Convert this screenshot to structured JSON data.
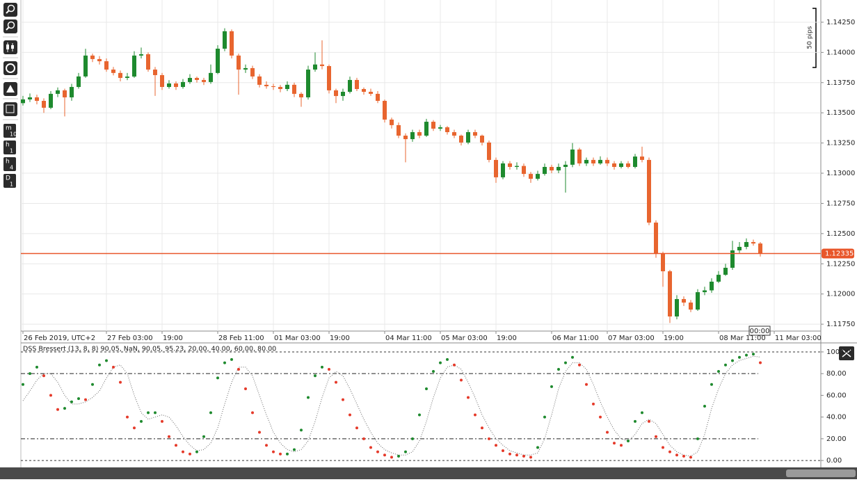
{
  "toolbar": {
    "buttons": [
      {
        "label": "m",
        "sub": "10"
      },
      {
        "label": "h",
        "sub": "1"
      },
      {
        "label": "h",
        "sub": "4"
      },
      {
        "label": "D",
        "sub": "1"
      }
    ]
  },
  "cursor_label": "00:00",
  "ruler_label": "50 pips",
  "chart_data": [
    {
      "type": "candlestick",
      "categories": [
        "26 Feb 2019, UTC+2",
        null,
        null,
        null,
        null,
        null,
        null,
        null,
        null,
        null,
        null,
        null,
        "27 Feb 03:00",
        null,
        null,
        null,
        null,
        null,
        null,
        null,
        "19:00",
        null,
        null,
        null,
        null,
        null,
        null,
        null,
        "28 Feb 11:00",
        null,
        null,
        null,
        null,
        null,
        null,
        null,
        "01 Mar 03:00",
        null,
        null,
        null,
        null,
        null,
        null,
        null,
        "19:00",
        null,
        null,
        null,
        null,
        null,
        null,
        null,
        "04 Mar 11:00",
        null,
        null,
        null,
        null,
        null,
        null,
        null,
        "05 Mar 03:00",
        null,
        null,
        null,
        null,
        null,
        null,
        null,
        "19:00",
        null,
        null,
        null,
        null,
        null,
        null,
        null,
        "06 Mar 11:00",
        null,
        null,
        null,
        null,
        null,
        null,
        null,
        "07 Mar 03:00",
        null,
        null,
        null,
        null,
        null,
        null,
        null,
        "19:00",
        null,
        null,
        null,
        null,
        null,
        null,
        null,
        "08 Mar 11:00",
        null,
        null,
        null,
        null,
        null,
        null,
        null,
        "11 Mar 03:00"
      ],
      "ohlc": [
        [
          1.1358,
          1.1364,
          1.1356,
          1.13611
        ],
        [
          1.13611,
          1.1366,
          1.1359,
          1.13628
        ],
        [
          1.13628,
          1.1365,
          1.1357,
          1.13599
        ],
        [
          1.13599,
          1.1362,
          1.135,
          1.13542
        ],
        [
          1.13542,
          1.1368,
          1.1353,
          1.13657
        ],
        [
          1.13657,
          1.1371,
          1.1363,
          1.13686
        ],
        [
          1.13686,
          1.137,
          1.1347,
          1.13628
        ],
        [
          1.13628,
          1.1374,
          1.136,
          1.13714
        ],
        [
          1.13714,
          1.1383,
          1.137,
          1.13801
        ],
        [
          1.13801,
          1.1403,
          1.1379,
          1.13974
        ],
        [
          1.13974,
          1.1399,
          1.1392,
          1.13945
        ],
        [
          1.13945,
          1.1397,
          1.139,
          1.13927
        ],
        [
          1.13927,
          1.1395,
          1.1384,
          1.13858
        ],
        [
          1.13858,
          1.1388,
          1.1381,
          1.1383
        ],
        [
          1.1383,
          1.1385,
          1.1376,
          1.13789
        ],
        [
          1.13789,
          1.1383,
          1.1377,
          1.138
        ],
        [
          1.138,
          1.1401,
          1.1379,
          1.13974
        ],
        [
          1.13974,
          1.1404,
          1.1395,
          1.13985
        ],
        [
          1.13985,
          1.14,
          1.1384,
          1.13858
        ],
        [
          1.13858,
          1.1388,
          1.1364,
          1.13812
        ],
        [
          1.13812,
          1.1383,
          1.1369,
          1.13714
        ],
        [
          1.13714,
          1.1377,
          1.137,
          1.13743
        ],
        [
          1.13743,
          1.1376,
          1.1369,
          1.13714
        ],
        [
          1.13714,
          1.1378,
          1.137,
          1.13755
        ],
        [
          1.13755,
          1.1382,
          1.1374,
          1.13789
        ],
        [
          1.13789,
          1.138,
          1.1375,
          1.13772
        ],
        [
          1.13772,
          1.1379,
          1.1373,
          1.13755
        ],
        [
          1.13755,
          1.139,
          1.1374,
          1.1383
        ],
        [
          1.1383,
          1.1406,
          1.1382,
          1.14031
        ],
        [
          1.14031,
          1.142,
          1.1401,
          1.14175
        ],
        [
          1.14175,
          1.1419,
          1.1395,
          1.13974
        ],
        [
          1.13974,
          1.1399,
          1.1365,
          1.13858
        ],
        [
          1.13858,
          1.139,
          1.1383,
          1.1387
        ],
        [
          1.1387,
          1.1389,
          1.1378,
          1.13801
        ],
        [
          1.13801,
          1.1382,
          1.1371,
          1.13732
        ],
        [
          1.13732,
          1.1376,
          1.137,
          1.1372
        ],
        [
          1.1372,
          1.1374,
          1.1369,
          1.13714
        ],
        [
          1.13714,
          1.1373,
          1.1367,
          1.13697
        ],
        [
          1.13697,
          1.1376,
          1.1368,
          1.13732
        ],
        [
          1.13732,
          1.1375,
          1.1363,
          1.13657
        ],
        [
          1.13657,
          1.1367,
          1.1355,
          1.13628
        ],
        [
          1.13628,
          1.1389,
          1.1361,
          1.13858
        ],
        [
          1.13858,
          1.14,
          1.1384,
          1.139
        ],
        [
          1.139,
          1.141,
          1.1386,
          1.13887
        ],
        [
          1.13887,
          1.139,
          1.1366,
          1.13686
        ],
        [
          1.13686,
          1.137,
          1.1358,
          1.13639
        ],
        [
          1.13639,
          1.137,
          1.136,
          1.13674
        ],
        [
          1.13674,
          1.138,
          1.1366,
          1.13772
        ],
        [
          1.13772,
          1.1379,
          1.1368,
          1.13697
        ],
        [
          1.13697,
          1.1371,
          1.1365,
          1.13674
        ],
        [
          1.13674,
          1.137,
          1.1364,
          1.13657
        ],
        [
          1.13657,
          1.1368,
          1.1358,
          1.13599
        ],
        [
          1.13599,
          1.1361,
          1.1342,
          1.13444
        ],
        [
          1.13444,
          1.1346,
          1.1337,
          1.13398
        ],
        [
          1.13398,
          1.1342,
          1.1329,
          1.13311
        ],
        [
          1.13311,
          1.1333,
          1.1309,
          1.13282
        ],
        [
          1.13282,
          1.1336,
          1.1326,
          1.1334
        ],
        [
          1.1334,
          1.1336,
          1.1329,
          1.13311
        ],
        [
          1.13311,
          1.1345,
          1.133,
          1.13426
        ],
        [
          1.13426,
          1.1344,
          1.1335,
          1.13369
        ],
        [
          1.13369,
          1.134,
          1.1335,
          1.1338
        ],
        [
          1.1338,
          1.1339,
          1.1332,
          1.1334
        ],
        [
          1.1334,
          1.1336,
          1.1329,
          1.13311
        ],
        [
          1.13311,
          1.1332,
          1.1323,
          1.13254
        ],
        [
          1.13254,
          1.1336,
          1.1324,
          1.1334
        ],
        [
          1.1334,
          1.1336,
          1.1329,
          1.13311
        ],
        [
          1.13311,
          1.1332,
          1.1323,
          1.13254
        ],
        [
          1.13254,
          1.1327,
          1.1309,
          1.1311
        ],
        [
          1.1311,
          1.1313,
          1.1292,
          1.12966
        ],
        [
          1.12966,
          1.131,
          1.1295,
          1.13081
        ],
        [
          1.13081,
          1.131,
          1.1303,
          1.13052
        ],
        [
          1.13052,
          1.1309,
          1.1303,
          1.1306
        ],
        [
          1.1306,
          1.1308,
          1.1297,
          1.12994
        ],
        [
          1.12994,
          1.1301,
          1.1292,
          1.12954
        ],
        [
          1.12954,
          1.1302,
          1.1294,
          1.12994
        ],
        [
          1.12994,
          1.1308,
          1.1298,
          1.13052
        ],
        [
          1.13052,
          1.1307,
          1.13,
          1.13023
        ],
        [
          1.13023,
          1.1308,
          1.13,
          1.13052
        ],
        [
          1.13052,
          1.131,
          1.1284,
          1.1307
        ],
        [
          1.1307,
          1.1325,
          1.1305,
          1.13196
        ],
        [
          1.13196,
          1.1321,
          1.1306,
          1.13081
        ],
        [
          1.13081,
          1.1313,
          1.1306,
          1.1311
        ],
        [
          1.1311,
          1.1313,
          1.1306,
          1.13081
        ],
        [
          1.13081,
          1.1314,
          1.1307,
          1.1311
        ],
        [
          1.1311,
          1.1313,
          1.1306,
          1.13081
        ],
        [
          1.13081,
          1.131,
          1.1303,
          1.13052
        ],
        [
          1.13052,
          1.131,
          1.1304,
          1.13081
        ],
        [
          1.13081,
          1.131,
          1.1304,
          1.13052
        ],
        [
          1.13052,
          1.1316,
          1.1304,
          1.13138
        ],
        [
          1.13138,
          1.1322,
          1.1309,
          1.1311
        ],
        [
          1.1311,
          1.1313,
          1.1257,
          1.12591
        ],
        [
          1.12591,
          1.1261,
          1.123,
          1.12332
        ],
        [
          1.12332,
          1.1235,
          1.1206,
          1.12188
        ],
        [
          1.12188,
          1.122,
          1.1176,
          1.11814
        ],
        [
          1.11814,
          1.1199,
          1.1179,
          1.11958
        ],
        [
          1.11958,
          1.1198,
          1.119,
          1.11929
        ],
        [
          1.11929,
          1.1195,
          1.1185,
          1.11871
        ],
        [
          1.11871,
          1.1204,
          1.1186,
          1.12015
        ],
        [
          1.12015,
          1.1206,
          1.1199,
          1.1203
        ],
        [
          1.1203,
          1.1213,
          1.1201,
          1.12102
        ],
        [
          1.12102,
          1.1219,
          1.1209,
          1.12159
        ],
        [
          1.12159,
          1.1225,
          1.1215,
          1.12217
        ],
        [
          1.12217,
          1.1244,
          1.122,
          1.12361
        ],
        [
          1.12361,
          1.1243,
          1.1234,
          1.1239
        ],
        [
          1.1239,
          1.1246,
          1.1237,
          1.1243
        ],
        [
          1.1243,
          1.1245,
          1.124,
          1.12418
        ],
        [
          1.12418,
          1.1243,
          1.1231,
          1.12335
        ],
        null,
        null
      ],
      "up_color": "#1e8a2e",
      "down_color": "#e8652f",
      "current_price": 1.12335,
      "price_line_color": "#e8562a",
      "ylim": [
        1.11693,
        1.14434
      ],
      "yticks": [
        {
          "value": 1.1175,
          "label": "1.11750"
        },
        {
          "value": 1.12,
          "label": "1.12000"
        },
        {
          "value": 1.1225,
          "label": "1.12250"
        },
        {
          "value": 1.125,
          "label": "1.12500"
        },
        {
          "value": 1.1275,
          "label": "1.12750"
        },
        {
          "value": 1.13,
          "label": "1.13000"
        },
        {
          "value": 1.1325,
          "label": "1.13250"
        },
        {
          "value": 1.135,
          "label": "1.13500"
        },
        {
          "value": 1.1375,
          "label": "1.13750"
        },
        {
          "value": 1.14,
          "label": "1.14000"
        },
        {
          "value": 1.1425,
          "label": "1.14250"
        }
      ],
      "grid": true
    },
    {
      "type": "oscillator",
      "title": "DSS Bressert (13, 8, 8) 90.05, NaN, 90.05, 95.23, 20.00, 40.00, 60.00, 80.00",
      "ylim": [
        -3.8,
        105.1
      ],
      "yticks": [
        {
          "value": 0,
          "label": "0.00"
        },
        {
          "value": 20,
          "label": "20.00"
        },
        {
          "value": 40,
          "label": "40.00"
        },
        {
          "value": 60,
          "label": "60.00"
        },
        {
          "value": 80,
          "label": "80.00"
        },
        {
          "value": 100,
          "label": "100.00"
        }
      ],
      "levels": [
        20,
        80
      ],
      "bounds": [
        0,
        100
      ],
      "series": [
        {
          "style": "dotted",
          "color": "#666666",
          "values": [
            55,
            64,
            74,
            80,
            80,
            72,
            60,
            52,
            52,
            54,
            58,
            64,
            76,
            86,
            88,
            80,
            60,
            44,
            38,
            40,
            42,
            40,
            32,
            22,
            14,
            9,
            10,
            16,
            30,
            52,
            72,
            86,
            86,
            78,
            60,
            42,
            26,
            16,
            10,
            8,
            10,
            18,
            36,
            58,
            76,
            82,
            78,
            66,
            52,
            38,
            26,
            16,
            10,
            7,
            5,
            5,
            8,
            18,
            36,
            58,
            76,
            86,
            88,
            84,
            72,
            58,
            42,
            30,
            20,
            14,
            9,
            7,
            5,
            5,
            7,
            20,
            42,
            66,
            82,
            90,
            90,
            84,
            70,
            54,
            40,
            28,
            20,
            18,
            24,
            34,
            38,
            34,
            24,
            14,
            8,
            5,
            4,
            8,
            24,
            48,
            66,
            80,
            88,
            92,
            94,
            96,
            95.23
          ]
        },
        {
          "style": "dots",
          "up_color": "#1e8a2e",
          "down_color": "#e53a2a",
          "values": [
            70,
            80,
            86,
            78,
            60,
            47,
            48,
            54,
            57,
            56,
            70,
            88,
            92,
            86,
            72,
            40,
            30,
            36,
            44,
            44,
            36,
            22,
            14,
            8,
            6,
            8,
            22,
            44,
            76,
            90,
            93,
            84,
            66,
            44,
            26,
            14,
            8,
            6,
            6,
            10,
            28,
            58,
            78,
            86,
            84,
            72,
            56,
            42,
            30,
            20,
            12,
            8,
            5,
            3,
            4,
            8,
            20,
            42,
            66,
            82,
            90,
            93,
            88,
            74,
            58,
            42,
            30,
            20,
            14,
            9,
            6,
            5,
            4,
            3,
            12,
            40,
            68,
            84,
            90,
            95,
            88,
            70,
            52,
            40,
            26,
            16,
            14,
            18,
            36,
            44,
            36,
            22,
            12,
            8,
            5,
            4,
            3,
            20,
            50,
            70,
            82,
            88,
            92,
            95,
            97,
            98,
            90.05
          ]
        }
      ]
    }
  ]
}
